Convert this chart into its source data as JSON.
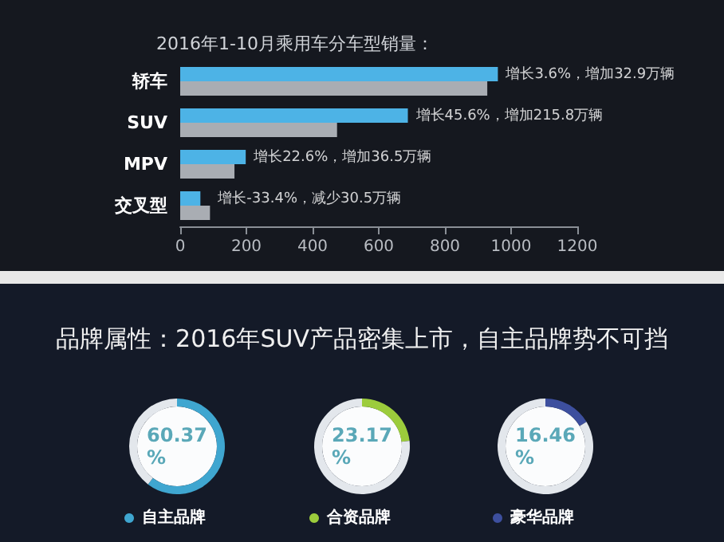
{
  "chart_data": [
    {
      "type": "bar",
      "orientation": "horizontal",
      "title": "2016年1-10月乘用车分车型销量：",
      "categories": [
        "轿车",
        "SUV",
        "MPV",
        "交叉型"
      ],
      "series": [
        {
          "color": "#4db3e6",
          "values": [
            960,
            688,
            198,
            61
          ]
        },
        {
          "color": "#a9adb3",
          "values": [
            928,
            474,
            164,
            90
          ]
        }
      ],
      "xlim": [
        0,
        1200
      ],
      "xticks": [
        0,
        200,
        400,
        600,
        800,
        1000,
        1200
      ],
      "grid": false,
      "annotations": [
        {
          "text": "增长3.6%，增加32.9万辆",
          "x": 960,
          "y": "轿车"
        },
        {
          "text": "增长45.6%，增加215.8万辆",
          "x": 688,
          "y": "SUV"
        },
        {
          "text": "增长22.6%，增加36.5万辆",
          "x": 198,
          "y": "MPV"
        },
        {
          "text": "增长-33.4%，减少30.5万辆",
          "x": 90,
          "y": "交叉型"
        }
      ]
    },
    {
      "type": "donut",
      "title": "品牌属性：2016年SUV产品密集上市，自主品牌势不可挡",
      "categories": [
        "自主品牌",
        null
      ],
      "values": [
        60.37,
        39.63
      ],
      "colors": [
        "#3fa6d0",
        "#e3e7ec"
      ],
      "annotations": [
        "60.37%"
      ]
    },
    {
      "type": "donut",
      "categories": [
        "合资品牌",
        null
      ],
      "values": [
        23.17,
        76.83
      ],
      "colors": [
        "#9ccc3c",
        "#e3e7ec"
      ],
      "annotations": [
        "23.17%"
      ]
    },
    {
      "type": "donut",
      "categories": [
        "豪华品牌",
        null
      ],
      "values": [
        16.46,
        83.54
      ],
      "colors": [
        "#3d4f9e",
        "#e3e7ec"
      ],
      "annotations": [
        "16.46%"
      ]
    }
  ]
}
